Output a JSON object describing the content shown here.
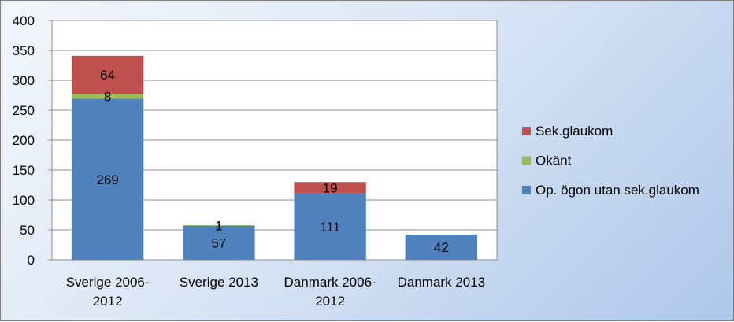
{
  "chart_data": {
    "type": "bar",
    "stacked": true,
    "categories": [
      [
        "Sverige  2006-",
        "2012"
      ],
      [
        "Sverige 2013"
      ],
      [
        "Danmark 2006-",
        "2012"
      ],
      [
        "Danmark 2013"
      ]
    ],
    "series": [
      {
        "name": "Op. ögon utan sek.glaukom",
        "color": "#4f81bd",
        "values": [
          269,
          57,
          111,
          42
        ]
      },
      {
        "name": "Okänt",
        "color": "#9bbb59",
        "values": [
          8,
          1,
          0,
          0
        ]
      },
      {
        "name": "Sek.glaukom",
        "color": "#c0504d",
        "values": [
          64,
          0,
          19,
          0
        ]
      }
    ],
    "data_labels": [
      [
        "269",
        "57",
        "111",
        "42"
      ],
      [
        "8",
        "1",
        "",
        ""
      ],
      [
        "64",
        "",
        "19",
        ""
      ]
    ],
    "ylim": [
      0,
      400
    ],
    "yticks": [
      0,
      50,
      100,
      150,
      200,
      250,
      300,
      350,
      400
    ],
    "grid": true,
    "legend_position": "right",
    "legend_order": [
      "Sek.glaukom",
      "Okänt",
      "Op. ögon utan sek.glaukom"
    ]
  }
}
